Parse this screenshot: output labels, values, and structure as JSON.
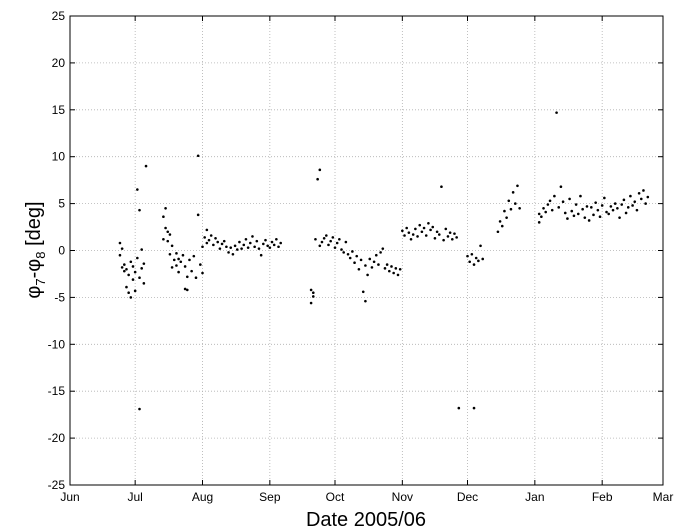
{
  "chart_data": {
    "type": "scatter",
    "title": "",
    "xlabel": "Date 2005/06",
    "ylabel_parts": {
      "var1": "φ",
      "sub1": "7",
      "dash": "-",
      "var2": "φ",
      "sub2": "8",
      "unit": " [deg]"
    },
    "ylabel": "φ7-φ8 [deg]",
    "x_axis_type": "date",
    "xlim": [
      "2005-06-01",
      "2006-03-01"
    ],
    "ylim": [
      -25,
      25
    ],
    "grid": true,
    "marker_color": "#000000",
    "xticks": [
      {
        "date": "2005-06-01",
        "label": "Jun"
      },
      {
        "date": "2005-07-01",
        "label": "Jul"
      },
      {
        "date": "2005-08-01",
        "label": "Aug"
      },
      {
        "date": "2005-09-01",
        "label": "Sep"
      },
      {
        "date": "2005-10-01",
        "label": "Oct"
      },
      {
        "date": "2005-11-01",
        "label": "Nov"
      },
      {
        "date": "2005-12-01",
        "label": "Dec"
      },
      {
        "date": "2006-01-01",
        "label": "Jan"
      },
      {
        "date": "2006-02-01",
        "label": "Feb"
      },
      {
        "date": "2006-03-01",
        "label": "Mar"
      }
    ],
    "yticks": [
      -25,
      -20,
      -15,
      -10,
      -5,
      0,
      5,
      10,
      15,
      20,
      25
    ],
    "points": [
      [
        "2005-06-24",
        0.8
      ],
      [
        "2005-06-24",
        -0.5
      ],
      [
        "2005-06-25",
        -1.8
      ],
      [
        "2005-06-25",
        0.2
      ],
      [
        "2005-06-26",
        -2.2
      ],
      [
        "2005-06-26",
        -1.5
      ],
      [
        "2005-06-27",
        -3.9
      ],
      [
        "2005-06-27",
        -2.0
      ],
      [
        "2005-06-28",
        -4.5
      ],
      [
        "2005-06-28",
        -2.6
      ],
      [
        "2005-06-29",
        -1.2
      ],
      [
        "2005-06-29",
        -5.0
      ],
      [
        "2005-06-30",
        -3.1
      ],
      [
        "2005-06-30",
        -1.7
      ],
      [
        "2005-07-01",
        -4.3
      ],
      [
        "2005-07-01",
        -2.3
      ],
      [
        "2005-07-02",
        6.5
      ],
      [
        "2005-07-02",
        -0.8
      ],
      [
        "2005-07-03",
        4.3
      ],
      [
        "2005-07-03",
        -2.9
      ],
      [
        "2005-07-03",
        -16.9
      ],
      [
        "2005-07-04",
        -1.9
      ],
      [
        "2005-07-04",
        0.1
      ],
      [
        "2005-07-05",
        -3.5
      ],
      [
        "2005-07-05",
        -1.4
      ],
      [
        "2005-07-06",
        9.0
      ],
      [
        "2005-07-14",
        1.2
      ],
      [
        "2005-07-14",
        3.6
      ],
      [
        "2005-07-15",
        2.4
      ],
      [
        "2005-07-15",
        4.5
      ],
      [
        "2005-07-16",
        1.0
      ],
      [
        "2005-07-16",
        2.0
      ],
      [
        "2005-07-17",
        -0.4
      ],
      [
        "2005-07-17",
        1.7
      ],
      [
        "2005-07-18",
        -1.8
      ],
      [
        "2005-07-18",
        0.5
      ],
      [
        "2005-07-19",
        -1.0
      ],
      [
        "2005-07-20",
        -1.6
      ],
      [
        "2005-07-20",
        -0.3
      ],
      [
        "2005-07-21",
        -2.3
      ],
      [
        "2005-07-21",
        -0.9
      ],
      [
        "2005-07-22",
        -1.2
      ],
      [
        "2005-07-23",
        -0.5
      ],
      [
        "2005-07-24",
        -4.1
      ],
      [
        "2005-07-24",
        -1.7
      ],
      [
        "2005-07-25",
        -2.8
      ],
      [
        "2005-07-25",
        -4.2
      ],
      [
        "2005-07-26",
        -1.0
      ],
      [
        "2005-07-27",
        -2.2
      ],
      [
        "2005-07-28",
        -0.6
      ],
      [
        "2005-07-29",
        -2.9
      ],
      [
        "2005-07-30",
        3.8
      ],
      [
        "2005-07-30",
        10.1
      ],
      [
        "2005-07-31",
        -1.5
      ],
      [
        "2005-08-01",
        -2.4
      ],
      [
        "2005-08-01",
        0.4
      ],
      [
        "2005-08-02",
        1.4
      ],
      [
        "2005-08-03",
        2.2
      ],
      [
        "2005-08-03",
        0.8
      ],
      [
        "2005-08-04",
        1.1
      ],
      [
        "2005-08-05",
        1.6
      ],
      [
        "2005-08-06",
        0.6
      ],
      [
        "2005-08-07",
        1.3
      ],
      [
        "2005-08-08",
        0.9
      ],
      [
        "2005-08-09",
        0.2
      ],
      [
        "2005-08-10",
        0.7
      ],
      [
        "2005-08-11",
        1.0
      ],
      [
        "2005-08-12",
        0.4
      ],
      [
        "2005-08-13",
        -0.2
      ],
      [
        "2005-08-14",
        0.3
      ],
      [
        "2005-08-15",
        -0.4
      ],
      [
        "2005-08-16",
        0.5
      ],
      [
        "2005-08-17",
        0.1
      ],
      [
        "2005-08-18",
        0.9
      ],
      [
        "2005-08-19",
        0.2
      ],
      [
        "2005-08-20",
        0.6
      ],
      [
        "2005-08-21",
        1.2
      ],
      [
        "2005-08-22",
        0.3
      ],
      [
        "2005-08-23",
        0.8
      ],
      [
        "2005-08-24",
        1.5
      ],
      [
        "2005-08-25",
        0.4
      ],
      [
        "2005-08-26",
        1.0
      ],
      [
        "2005-08-27",
        0.2
      ],
      [
        "2005-08-28",
        -0.5
      ],
      [
        "2005-08-29",
        0.7
      ],
      [
        "2005-08-30",
        1.1
      ],
      [
        "2005-08-31",
        0.5
      ],
      [
        "2005-09-01",
        0.3
      ],
      [
        "2005-09-02",
        0.9
      ],
      [
        "2005-09-03",
        0.6
      ],
      [
        "2005-09-04",
        1.2
      ],
      [
        "2005-09-05",
        0.4
      ],
      [
        "2005-09-06",
        0.8
      ],
      [
        "2005-09-20",
        -5.6
      ],
      [
        "2005-09-20",
        -4.2
      ],
      [
        "2005-09-21",
        -4.9
      ],
      [
        "2005-09-21",
        -4.5
      ],
      [
        "2005-09-22",
        1.2
      ],
      [
        "2005-09-23",
        7.6
      ],
      [
        "2005-09-24",
        8.6
      ],
      [
        "2005-09-24",
        0.5
      ],
      [
        "2005-09-25",
        0.9
      ],
      [
        "2005-09-26",
        1.3
      ],
      [
        "2005-09-27",
        1.6
      ],
      [
        "2005-09-28",
        0.6
      ],
      [
        "2005-09-29",
        1.0
      ],
      [
        "2005-09-30",
        1.4
      ],
      [
        "2005-10-01",
        0.3
      ],
      [
        "2005-10-02",
        0.8
      ],
      [
        "2005-10-03",
        1.2
      ],
      [
        "2005-10-04",
        0.1
      ],
      [
        "2005-10-05",
        -0.2
      ],
      [
        "2005-10-06",
        0.9
      ],
      [
        "2005-10-07",
        -0.4
      ],
      [
        "2005-10-08",
        -0.8
      ],
      [
        "2005-10-09",
        -0.1
      ],
      [
        "2005-10-10",
        -1.3
      ],
      [
        "2005-10-11",
        -0.6
      ],
      [
        "2005-10-12",
        -2.0
      ],
      [
        "2005-10-13",
        -1.0
      ],
      [
        "2005-10-14",
        -4.4
      ],
      [
        "2005-10-15",
        -5.4
      ],
      [
        "2005-10-15",
        -1.6
      ],
      [
        "2005-10-16",
        -2.6
      ],
      [
        "2005-10-17",
        -0.9
      ],
      [
        "2005-10-18",
        -1.8
      ],
      [
        "2005-10-19",
        -1.2
      ],
      [
        "2005-10-20",
        -0.5
      ],
      [
        "2005-10-21",
        -1.5
      ],
      [
        "2005-10-22",
        -0.2
      ],
      [
        "2005-10-23",
        0.2
      ],
      [
        "2005-10-24",
        -1.9
      ],
      [
        "2005-10-25",
        -1.5
      ],
      [
        "2005-10-26",
        -2.2
      ],
      [
        "2005-10-27",
        -1.7
      ],
      [
        "2005-10-28",
        -2.4
      ],
      [
        "2005-10-29",
        -1.9
      ],
      [
        "2005-10-30",
        -2.6
      ],
      [
        "2005-10-31",
        -2.0
      ],
      [
        "2005-11-01",
        2.1
      ],
      [
        "2005-11-02",
        1.6
      ],
      [
        "2005-11-03",
        2.4
      ],
      [
        "2005-11-04",
        1.9
      ],
      [
        "2005-11-05",
        1.2
      ],
      [
        "2005-11-06",
        1.7
      ],
      [
        "2005-11-07",
        2.3
      ],
      [
        "2005-11-08",
        1.5
      ],
      [
        "2005-11-09",
        2.7
      ],
      [
        "2005-11-10",
        2.0
      ],
      [
        "2005-11-11",
        2.4
      ],
      [
        "2005-11-12",
        1.6
      ],
      [
        "2005-11-13",
        2.9
      ],
      [
        "2005-11-14",
        2.2
      ],
      [
        "2005-11-15",
        2.5
      ],
      [
        "2005-11-16",
        1.3
      ],
      [
        "2005-11-17",
        2.0
      ],
      [
        "2005-11-18",
        1.7
      ],
      [
        "2005-11-19",
        6.8
      ],
      [
        "2005-11-20",
        1.1
      ],
      [
        "2005-11-21",
        2.3
      ],
      [
        "2005-11-22",
        1.5
      ],
      [
        "2005-11-23",
        1.9
      ],
      [
        "2005-11-24",
        1.2
      ],
      [
        "2005-11-25",
        1.8
      ],
      [
        "2005-11-26",
        1.4
      ],
      [
        "2005-11-27",
        -16.8
      ],
      [
        "2005-12-01",
        -0.6
      ],
      [
        "2005-12-02",
        -1.2
      ],
      [
        "2005-12-03",
        -0.4
      ],
      [
        "2005-12-04",
        -1.5
      ],
      [
        "2005-12-04",
        -16.8
      ],
      [
        "2005-12-05",
        -0.8
      ],
      [
        "2005-12-06",
        -1.1
      ],
      [
        "2005-12-07",
        0.5
      ],
      [
        "2005-12-08",
        -0.9
      ],
      [
        "2005-12-15",
        2.0
      ],
      [
        "2005-12-16",
        3.1
      ],
      [
        "2005-12-17",
        2.6
      ],
      [
        "2005-12-18",
        4.2
      ],
      [
        "2005-12-19",
        3.5
      ],
      [
        "2005-12-20",
        5.3
      ],
      [
        "2005-12-21",
        4.4
      ],
      [
        "2005-12-22",
        6.2
      ],
      [
        "2005-12-23",
        5.0
      ],
      [
        "2005-12-24",
        6.9
      ],
      [
        "2005-12-25",
        4.5
      ],
      [
        "2006-01-03",
        3.0
      ],
      [
        "2006-01-03",
        3.9
      ],
      [
        "2006-01-04",
        3.6
      ],
      [
        "2006-01-05",
        4.5
      ],
      [
        "2006-01-06",
        4.1
      ],
      [
        "2006-01-07",
        4.9
      ],
      [
        "2006-01-08",
        5.3
      ],
      [
        "2006-01-09",
        4.3
      ],
      [
        "2006-01-10",
        5.8
      ],
      [
        "2006-01-11",
        14.7
      ],
      [
        "2006-01-12",
        4.6
      ],
      [
        "2006-01-13",
        6.8
      ],
      [
        "2006-01-14",
        5.2
      ],
      [
        "2006-01-15",
        4.0
      ],
      [
        "2006-01-16",
        3.4
      ],
      [
        "2006-01-17",
        5.5
      ],
      [
        "2006-01-18",
        4.2
      ],
      [
        "2006-01-19",
        3.7
      ],
      [
        "2006-01-20",
        4.9
      ],
      [
        "2006-01-21",
        3.9
      ],
      [
        "2006-01-22",
        5.8
      ],
      [
        "2006-01-23",
        4.4
      ],
      [
        "2006-01-24",
        3.5
      ],
      [
        "2006-01-25",
        4.7
      ],
      [
        "2006-01-26",
        3.2
      ],
      [
        "2006-01-27",
        4.6
      ],
      [
        "2006-01-28",
        3.8
      ],
      [
        "2006-01-29",
        5.1
      ],
      [
        "2006-01-30",
        4.3
      ],
      [
        "2006-01-31",
        3.6
      ],
      [
        "2006-02-01",
        4.8
      ],
      [
        "2006-02-02",
        5.6
      ],
      [
        "2006-02-03",
        4.1
      ],
      [
        "2006-02-04",
        3.9
      ],
      [
        "2006-02-05",
        4.7
      ],
      [
        "2006-02-06",
        4.3
      ],
      [
        "2006-02-07",
        5.0
      ],
      [
        "2006-02-08",
        4.5
      ],
      [
        "2006-02-09",
        3.5
      ],
      [
        "2006-02-10",
        4.9
      ],
      [
        "2006-02-11",
        5.4
      ],
      [
        "2006-02-12",
        4.0
      ],
      [
        "2006-02-13",
        4.6
      ],
      [
        "2006-02-14",
        5.8
      ],
      [
        "2006-02-15",
        4.8
      ],
      [
        "2006-02-16",
        5.2
      ],
      [
        "2006-02-17",
        4.3
      ],
      [
        "2006-02-18",
        6.1
      ],
      [
        "2006-02-19",
        5.5
      ],
      [
        "2006-02-20",
        6.4
      ],
      [
        "2006-02-21",
        5.0
      ],
      [
        "2006-02-22",
        5.7
      ]
    ]
  }
}
